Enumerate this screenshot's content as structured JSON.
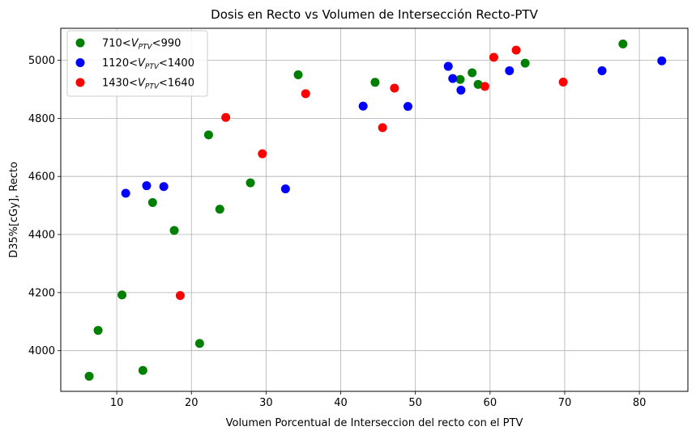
{
  "chart_data": {
    "type": "scatter",
    "title": "Dosis en Recto vs Volumen de Intersección Recto-PTV",
    "xlabel": "Volumen Porcentual de Interseccion del recto con el PTV",
    "ylabel": "D35%[cGy], Recto",
    "xlim": [
      2.5,
      86.5
    ],
    "ylim": [
      3860,
      5110
    ],
    "xticks": [
      10,
      20,
      30,
      40,
      50,
      60,
      70,
      80
    ],
    "yticks": [
      4000,
      4200,
      4400,
      4600,
      4800,
      5000
    ],
    "grid": true,
    "legend_position": "top-left",
    "series": [
      {
        "name": "710<V_PTV<990",
        "legend": {
          "pre": "710<",
          "main": "V",
          "sub": "PTV",
          "post": "<990"
        },
        "color": "#008000",
        "points": [
          [
            6.3,
            3912
          ],
          [
            7.5,
            4070
          ],
          [
            10.7,
            4192
          ],
          [
            13.5,
            3932
          ],
          [
            14.8,
            4510
          ],
          [
            17.7,
            4414
          ],
          [
            21.1,
            4025
          ],
          [
            22.3,
            4743
          ],
          [
            23.8,
            4487
          ],
          [
            27.9,
            4578
          ],
          [
            34.3,
            4950
          ],
          [
            44.6,
            4924
          ],
          [
            56.0,
            4934
          ],
          [
            57.6,
            4957
          ],
          [
            58.4,
            4917
          ],
          [
            64.7,
            4990
          ],
          [
            77.8,
            5056
          ]
        ]
      },
      {
        "name": "1120<V_PTV<1400",
        "legend": {
          "pre": "1120<",
          "main": "V",
          "sub": "PTV",
          "post": "<1400"
        },
        "color": "#0000ff",
        "points": [
          [
            11.2,
            4542
          ],
          [
            14.0,
            4568
          ],
          [
            16.3,
            4565
          ],
          [
            32.6,
            4557
          ],
          [
            43.0,
            4842
          ],
          [
            49.0,
            4841
          ],
          [
            54.4,
            4979
          ],
          [
            55.0,
            4937
          ],
          [
            56.1,
            4897
          ],
          [
            62.6,
            4964
          ],
          [
            75.0,
            4964
          ],
          [
            83.0,
            4998
          ]
        ]
      },
      {
        "name": "1430<V_PTV<1640",
        "legend": {
          "pre": "1430<",
          "main": "V",
          "sub": "PTV",
          "post": "<1640"
        },
        "color": "#ff0000",
        "points": [
          [
            18.5,
            4190
          ],
          [
            24.6,
            4803
          ],
          [
            29.5,
            4678
          ],
          [
            35.3,
            4885
          ],
          [
            45.6,
            4768
          ],
          [
            47.2,
            4904
          ],
          [
            59.3,
            4910
          ],
          [
            60.5,
            5010
          ],
          [
            63.5,
            5035
          ],
          [
            69.8,
            4925
          ]
        ]
      }
    ]
  }
}
